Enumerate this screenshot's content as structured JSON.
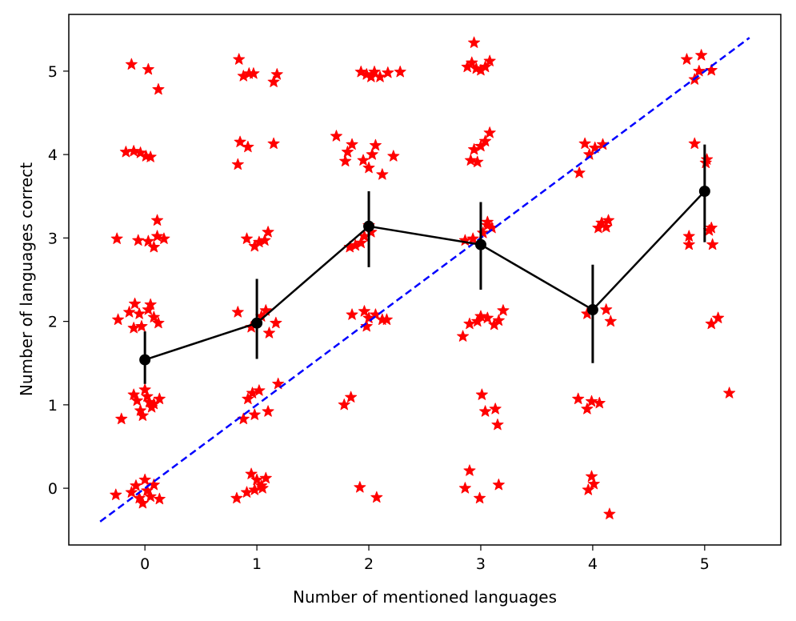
{
  "chart_data": {
    "type": "scatter",
    "title": "",
    "xlabel": "Number of mentioned languages",
    "ylabel": "Number of languages correct",
    "xlim": [
      -0.68,
      5.68
    ],
    "ylim": [
      -0.68,
      5.68
    ],
    "xticks": [
      0,
      1,
      2,
      3,
      4,
      5
    ],
    "yticks": [
      0,
      1,
      2,
      3,
      4,
      5
    ],
    "grid": false,
    "colors": {
      "scatter": "#ff0000",
      "mean": "#000000",
      "identity": "#0000ff"
    },
    "scatter_points": [
      [
        -0.12,
        5.08
      ],
      [
        0.03,
        5.02
      ],
      [
        0.12,
        4.78
      ],
      [
        -0.17,
        4.03
      ],
      [
        -0.1,
        4.04
      ],
      [
        -0.04,
        4.02
      ],
      [
        0.01,
        3.98
      ],
      [
        0.05,
        3.97
      ],
      [
        -0.25,
        2.99
      ],
      [
        -0.06,
        2.97
      ],
      [
        0.03,
        2.96
      ],
      [
        0.08,
        2.89
      ],
      [
        0.11,
        3.02
      ],
      [
        0.11,
        3.21
      ],
      [
        0.17,
        2.99
      ],
      [
        -0.24,
        2.02
      ],
      [
        -0.14,
        2.11
      ],
      [
        -0.09,
        2.21
      ],
      [
        -0.05,
        2.09
      ],
      [
        -0.1,
        1.92
      ],
      [
        -0.03,
        1.94
      ],
      [
        0.03,
        2.14
      ],
      [
        0.05,
        2.2
      ],
      [
        0.08,
        2.05
      ],
      [
        0.12,
        1.98
      ],
      [
        -0.21,
        0.83
      ],
      [
        -0.1,
        1.12
      ],
      [
        -0.07,
        1.05
      ],
      [
        -0.04,
        0.93
      ],
      [
        -0.02,
        0.87
      ],
      [
        0.0,
        1.18
      ],
      [
        0.02,
        1.1
      ],
      [
        0.04,
        1.03
      ],
      [
        0.06,
        0.97
      ],
      [
        0.08,
        1.01
      ],
      [
        0.13,
        1.07
      ],
      [
        -0.26,
        -0.08
      ],
      [
        -0.12,
        -0.05
      ],
      [
        -0.08,
        0.03
      ],
      [
        -0.05,
        -0.12
      ],
      [
        -0.02,
        -0.18
      ],
      [
        0.0,
        0.1
      ],
      [
        0.02,
        -0.03
      ],
      [
        0.05,
        -0.1
      ],
      [
        0.08,
        0.04
      ],
      [
        0.13,
        -0.13
      ],
      [
        0.84,
        5.14
      ],
      [
        0.88,
        4.94
      ],
      [
        0.93,
        4.97
      ],
      [
        0.97,
        4.97
      ],
      [
        1.15,
        4.87
      ],
      [
        1.18,
        4.96
      ],
      [
        0.83,
        3.88
      ],
      [
        0.85,
        4.15
      ],
      [
        0.92,
        4.09
      ],
      [
        1.15,
        4.13
      ],
      [
        0.91,
        2.99
      ],
      [
        0.98,
        2.9
      ],
      [
        1.02,
        2.95
      ],
      [
        1.07,
        2.97
      ],
      [
        1.1,
        3.07
      ],
      [
        0.83,
        2.11
      ],
      [
        0.95,
        1.93
      ],
      [
        1.04,
        2.06
      ],
      [
        1.08,
        2.13
      ],
      [
        1.11,
        1.86
      ],
      [
        1.17,
        1.98
      ],
      [
        0.82,
        -0.12
      ],
      [
        0.88,
        0.83
      ],
      [
        0.92,
        1.07
      ],
      [
        0.96,
        1.14
      ],
      [
        0.98,
        0.88
      ],
      [
        1.02,
        1.17
      ],
      [
        1.1,
        0.92
      ],
      [
        1.19,
        1.25
      ],
      [
        0.91,
        -0.05
      ],
      [
        0.95,
        0.17
      ],
      [
        0.98,
        -0.02
      ],
      [
        1.0,
        0.1
      ],
      [
        1.04,
        0.03
      ],
      [
        1.08,
        0.12
      ],
      [
        1.05,
        0.0
      ],
      [
        1.93,
        4.99
      ],
      [
        1.98,
        4.96
      ],
      [
        2.02,
        4.93
      ],
      [
        2.05,
        4.99
      ],
      [
        2.1,
        4.93
      ],
      [
        2.17,
        4.98
      ],
      [
        2.28,
        4.99
      ],
      [
        1.71,
        4.22
      ],
      [
        1.79,
        3.92
      ],
      [
        1.81,
        4.03
      ],
      [
        1.85,
        4.12
      ],
      [
        1.95,
        3.93
      ],
      [
        2.0,
        3.84
      ],
      [
        2.03,
        4.0
      ],
      [
        2.06,
        4.11
      ],
      [
        2.12,
        3.76
      ],
      [
        2.22,
        3.98
      ],
      [
        1.83,
        2.89
      ],
      [
        1.88,
        2.91
      ],
      [
        1.93,
        2.94
      ],
      [
        1.96,
        3.02
      ],
      [
        2.0,
        3.15
      ],
      [
        2.02,
        3.07
      ],
      [
        1.85,
        2.08
      ],
      [
        1.96,
        2.12
      ],
      [
        1.98,
        1.94
      ],
      [
        2.0,
        2.04
      ],
      [
        2.06,
        2.08
      ],
      [
        2.12,
        2.02
      ],
      [
        2.16,
        2.02
      ],
      [
        1.78,
        1.0
      ],
      [
        1.84,
        1.09
      ],
      [
        1.92,
        0.01
      ],
      [
        2.07,
        -0.11
      ],
      [
        2.88,
        5.05
      ],
      [
        2.92,
        5.1
      ],
      [
        2.96,
        5.03
      ],
      [
        3.0,
        5.01
      ],
      [
        3.04,
        5.05
      ],
      [
        3.08,
        5.12
      ],
      [
        2.94,
        5.34
      ],
      [
        2.91,
        3.93
      ],
      [
        2.94,
        4.06
      ],
      [
        2.97,
        3.91
      ],
      [
        3.0,
        4.1
      ],
      [
        3.04,
        4.16
      ],
      [
        3.08,
        4.26
      ],
      [
        2.86,
        2.97
      ],
      [
        2.93,
        2.99
      ],
      [
        3.02,
        3.06
      ],
      [
        3.06,
        3.15
      ],
      [
        3.06,
        3.19
      ],
      [
        3.1,
        3.12
      ],
      [
        2.84,
        1.82
      ],
      [
        2.9,
        1.97
      ],
      [
        2.97,
        2.0
      ],
      [
        3.0,
        2.06
      ],
      [
        3.06,
        2.04
      ],
      [
        3.12,
        1.96
      ],
      [
        3.16,
        2.01
      ],
      [
        3.2,
        2.13
      ],
      [
        3.01,
        1.12
      ],
      [
        3.04,
        0.92
      ],
      [
        3.13,
        0.95
      ],
      [
        3.15,
        0.76
      ],
      [
        2.86,
        0.0
      ],
      [
        2.9,
        0.21
      ],
      [
        2.99,
        -0.12
      ],
      [
        3.16,
        0.04
      ],
      [
        3.88,
        3.78
      ],
      [
        3.93,
        4.13
      ],
      [
        3.97,
        4.0
      ],
      [
        4.02,
        4.08
      ],
      [
        4.09,
        4.12
      ],
      [
        4.05,
        3.12
      ],
      [
        4.08,
        3.18
      ],
      [
        4.12,
        3.13
      ],
      [
        4.14,
        3.21
      ],
      [
        3.95,
        2.09
      ],
      [
        4.12,
        2.14
      ],
      [
        4.16,
        2.0
      ],
      [
        3.87,
        1.07
      ],
      [
        3.95,
        0.95
      ],
      [
        3.99,
        1.04
      ],
      [
        4.06,
        1.02
      ],
      [
        3.96,
        -0.02
      ],
      [
        3.99,
        0.14
      ],
      [
        4.01,
        0.05
      ],
      [
        4.15,
        -0.31
      ],
      [
        4.84,
        5.14
      ],
      [
        4.91,
        4.9
      ],
      [
        4.95,
        5.0
      ],
      [
        4.97,
        5.19
      ],
      [
        5.06,
        5.01
      ],
      [
        4.91,
        4.13
      ],
      [
        5.01,
        3.9
      ],
      [
        5.02,
        3.94
      ],
      [
        4.86,
        3.02
      ],
      [
        4.86,
        2.92
      ],
      [
        5.04,
        3.09
      ],
      [
        5.06,
        3.12
      ],
      [
        5.07,
        2.92
      ],
      [
        5.06,
        1.97
      ],
      [
        5.12,
        2.04
      ],
      [
        5.22,
        1.14
      ]
    ],
    "mean_series": {
      "x": [
        0,
        1,
        2,
        3,
        4,
        5
      ],
      "y": [
        1.54,
        1.98,
        3.14,
        2.92,
        2.14,
        3.56
      ],
      "err_low": [
        1.25,
        1.55,
        2.65,
        2.38,
        1.5,
        2.95
      ],
      "err_high": [
        1.88,
        2.51,
        3.56,
        3.43,
        2.68,
        4.12
      ]
    },
    "identity_line": {
      "x": [
        -0.4,
        5.4
      ],
      "y": [
        -0.4,
        5.4
      ]
    }
  }
}
